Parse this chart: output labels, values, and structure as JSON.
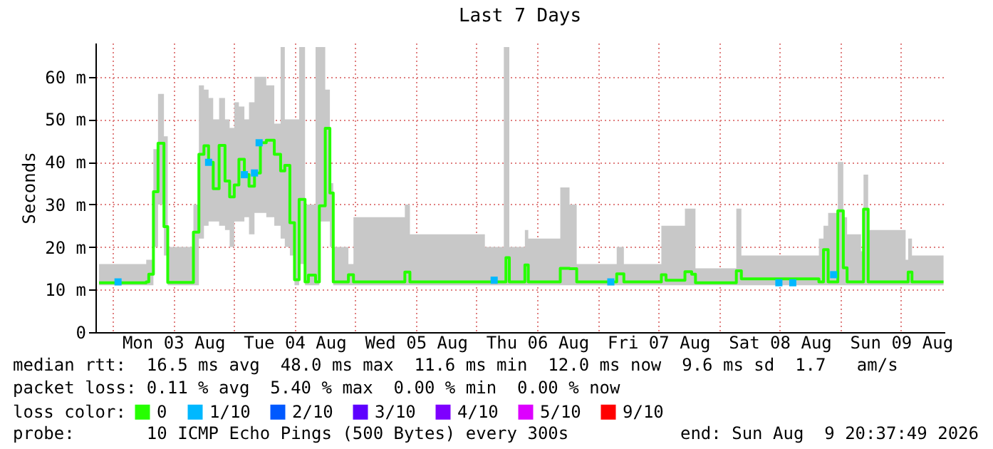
{
  "chart_data": {
    "type": "step",
    "title": "Last 7 Days",
    "ylabel": "Seconds",
    "x": [
      "2026-08-02T21:20",
      "2026-08-03T06:40",
      "2026-08-03T07:10",
      "2026-08-03T08:05",
      "2026-08-03T09:00",
      "2026-08-03T10:10",
      "2026-08-03T10:55",
      "2026-08-03T15:05",
      "2026-08-03T16:00",
      "2026-08-03T17:05",
      "2026-08-03T18:05",
      "2026-08-03T19:00",
      "2026-08-03T19:55",
      "2026-08-03T21:05",
      "2026-08-03T22:15",
      "2026-08-03T23:10",
      "2026-08-04T00:05",
      "2026-08-04T01:00",
      "2026-08-04T02:05",
      "2026-08-04T03:00",
      "2026-08-04T04:05",
      "2026-08-04T05:15",
      "2026-08-04T06:25",
      "2026-08-04T08:00",
      "2026-08-04T09:15",
      "2026-08-04T10:05",
      "2026-08-04T11:05",
      "2026-08-04T12:00",
      "2026-08-04T12:55",
      "2026-08-04T14:05",
      "2026-08-04T14:45",
      "2026-08-04T16:10",
      "2026-08-04T16:55",
      "2026-08-04T18:05",
      "2026-08-04T19:00",
      "2026-08-04T19:40",
      "2026-08-04T22:40",
      "2026-08-04T23:40",
      "2026-08-05T09:50",
      "2026-08-05T10:50",
      "2026-08-06T01:40",
      "2026-08-06T05:25",
      "2026-08-06T05:50",
      "2026-08-06T06:30",
      "2026-08-06T09:35",
      "2026-08-06T10:15",
      "2026-08-06T16:35",
      "2026-08-06T18:25",
      "2026-08-06T19:50",
      "2026-08-07T02:50",
      "2026-08-07T03:45",
      "2026-08-07T05:10",
      "2026-08-07T12:35",
      "2026-08-07T13:30",
      "2026-08-07T17:15",
      "2026-08-07T18:35",
      "2026-08-07T19:20",
      "2026-08-08T03:25",
      "2026-08-08T04:25",
      "2026-08-08T19:45",
      "2026-08-08T20:40",
      "2026-08-08T21:35",
      "2026-08-08T23:30",
      "2026-08-09T00:35",
      "2026-08-09T01:20",
      "2026-08-09T04:05",
      "2026-08-09T04:35",
      "2026-08-09T05:30",
      "2026-08-09T12:55",
      "2026-08-09T13:25",
      "2026-08-09T14:10",
      "2026-08-09T20:25"
    ],
    "series": [
      {
        "name": "0",
        "color": "#26ff00",
        "values": [
          11.6,
          11.8,
          13.6,
          33,
          44.4,
          24.8,
          11.7,
          11.7,
          23.5,
          41.8,
          43.8,
          39.9,
          33.7,
          43.9,
          35.5,
          31.8,
          34.6,
          40.6,
          37,
          34.3,
          37.4,
          44.5,
          45.1,
          41.8,
          37.9,
          39.2,
          25.7,
          12.3,
          31.2,
          11.8,
          13.4,
          11.8,
          29.7,
          47.9,
          32.7,
          11.8,
          13.5,
          11.8,
          14.1,
          11.8,
          11.8,
          11.8,
          17.5,
          11.8,
          15.8,
          11.8,
          15,
          14.9,
          11.8,
          11.8,
          13.7,
          11.8,
          13.5,
          12.2,
          14.2,
          13.6,
          11.6,
          14.4,
          12.5,
          11.8,
          19.4,
          11.8,
          28.5,
          15.1,
          11.8,
          11.8,
          28.9,
          11.8,
          11.8,
          14.1,
          11.8,
          11.8
        ],
        "lower": [
          11,
          11,
          11,
          20,
          30,
          18,
          11,
          11,
          11,
          22,
          25,
          26,
          26,
          25,
          24,
          20,
          26,
          26,
          27,
          23,
          28,
          28,
          27,
          25,
          22,
          20,
          18,
          11,
          16,
          11,
          11,
          11,
          26,
          26,
          20,
          11,
          11,
          11,
          11,
          11,
          11,
          11,
          11,
          11,
          11,
          11,
          11,
          11,
          11,
          11,
          11,
          11,
          11,
          11,
          11,
          11,
          11,
          11,
          11,
          11,
          11,
          11,
          11,
          11,
          11,
          11,
          11,
          11,
          11,
          11,
          11,
          11
        ],
        "upper": [
          16,
          17,
          17,
          43,
          56,
          46,
          20,
          20,
          30,
          58,
          57,
          55,
          50,
          55,
          50,
          48,
          54,
          53,
          50,
          54,
          60,
          60,
          58,
          49,
          67,
          50,
          50,
          50,
          67,
          30,
          30,
          67,
          67,
          57,
          35,
          20,
          16,
          27,
          30,
          23,
          20,
          67,
          67,
          20,
          24,
          22,
          34,
          30,
          16,
          16,
          20,
          16,
          25,
          25,
          29,
          29,
          15,
          29,
          18,
          22,
          25,
          28,
          40,
          27,
          23,
          19,
          37,
          24,
          17,
          22,
          18,
          16
        ]
      },
      {
        "name": "1/10",
        "type": "scatter",
        "marker": "square",
        "color": "#00b8ff",
        "x": [
          "2026-08-03T01:05",
          "2026-08-03T19:00",
          "2026-08-04T02:05",
          "2026-08-04T04:05",
          "2026-08-04T05:00",
          "2026-08-06T03:30",
          "2026-08-07T02:35",
          "2026-08-08T11:50",
          "2026-08-08T14:35",
          "2026-08-08T22:40"
        ],
        "values": [
          11.8,
          39.9,
          37,
          37.4,
          44.5,
          12.2,
          11.8,
          11.6,
          11.6,
          13.5
        ]
      },
      {
        "name": "2/10",
        "type": "scatter",
        "color": "#0059ff",
        "values": [
          null,
          null,
          null,
          null,
          null,
          null,
          null,
          null,
          null,
          null,
          null,
          null,
          null,
          null,
          null,
          null,
          null,
          null,
          null,
          null,
          null,
          null,
          null,
          null,
          null,
          null,
          null,
          null,
          null,
          null,
          null,
          null,
          null,
          null,
          null,
          null,
          null,
          null,
          null,
          null,
          null,
          null,
          null,
          null,
          null,
          null,
          null,
          null,
          null,
          null,
          null,
          null,
          null,
          null,
          null,
          null,
          null,
          null,
          null,
          null,
          null,
          null,
          null,
          null,
          null,
          null,
          null,
          null,
          null,
          null,
          null,
          null
        ]
      },
      {
        "name": "3/10",
        "type": "scatter",
        "color": "#5e00ff",
        "values": [
          null,
          null,
          null,
          null,
          null,
          null,
          null,
          null,
          null,
          null,
          null,
          null,
          null,
          null,
          null,
          null,
          null,
          null,
          null,
          null,
          null,
          null,
          null,
          null,
          null,
          null,
          null,
          null,
          null,
          null,
          null,
          null,
          null,
          null,
          null,
          null,
          null,
          null,
          null,
          null,
          null,
          null,
          null,
          null,
          null,
          null,
          null,
          null,
          null,
          null,
          null,
          null,
          null,
          null,
          null,
          null,
          null,
          null,
          null,
          null,
          null,
          null,
          null,
          null,
          null,
          null,
          null,
          null,
          null,
          null,
          null,
          null
        ]
      },
      {
        "name": "4/10",
        "type": "scatter",
        "color": "#7e00ff",
        "values": [
          null,
          null,
          null,
          null,
          null,
          null,
          null,
          null,
          null,
          null,
          null,
          null,
          null,
          null,
          null,
          null,
          null,
          null,
          null,
          null,
          null,
          null,
          null,
          null,
          null,
          null,
          null,
          null,
          null,
          null,
          null,
          null,
          null,
          null,
          null,
          null,
          null,
          null,
          null,
          null,
          null,
          null,
          null,
          null,
          null,
          null,
          null,
          null,
          null,
          null,
          null,
          null,
          null,
          null,
          null,
          null,
          null,
          null,
          null,
          null,
          null,
          null,
          null,
          null,
          null,
          null,
          null,
          null,
          null,
          null,
          null,
          null
        ]
      },
      {
        "name": "5/10",
        "type": "scatter",
        "color": "#dd00ff",
        "values": [
          null,
          null,
          null,
          null,
          null,
          null,
          null,
          null,
          null,
          null,
          null,
          null,
          null,
          null,
          null,
          null,
          null,
          null,
          null,
          null,
          null,
          null,
          null,
          null,
          null,
          null,
          null,
          null,
          null,
          null,
          null,
          null,
          null,
          null,
          null,
          null,
          null,
          null,
          null,
          null,
          null,
          null,
          null,
          null,
          null,
          null,
          null,
          null,
          null,
          null,
          null,
          null,
          null,
          null,
          null,
          null,
          null,
          null,
          null,
          null,
          null,
          null,
          null,
          null,
          null,
          null,
          null,
          null,
          null,
          null,
          null,
          null
        ]
      },
      {
        "name": "9/10",
        "type": "scatter",
        "color": "#ff0000",
        "values": [
          null,
          null,
          null,
          null,
          null,
          null,
          null,
          null,
          null,
          null,
          null,
          null,
          null,
          null,
          null,
          null,
          null,
          null,
          null,
          null,
          null,
          null,
          null,
          null,
          null,
          null,
          null,
          null,
          null,
          null,
          null,
          null,
          null,
          null,
          null,
          null,
          null,
          null,
          null,
          null,
          null,
          null,
          null,
          null,
          null,
          null,
          null,
          null,
          null,
          null,
          null,
          null,
          null,
          null,
          null,
          null,
          null,
          null,
          null,
          null,
          null,
          null,
          null,
          null,
          null,
          null,
          null,
          null,
          null,
          null,
          null,
          null
        ]
      }
    ],
    "xlim": [
      "2026-08-02T20:37",
      "2026-08-09T20:37"
    ],
    "xticks": [
      {
        "value": "2026-08-03T00:00",
        "label": null
      },
      {
        "value": "2026-08-03T12:00",
        "label": "Mon 03 Aug"
      },
      {
        "value": "2026-08-04T00:00",
        "label": null
      },
      {
        "value": "2026-08-04T12:00",
        "label": "Tue 04 Aug"
      },
      {
        "value": "2026-08-05T00:00",
        "label": null
      },
      {
        "value": "2026-08-05T12:00",
        "label": "Wed 05 Aug"
      },
      {
        "value": "2026-08-06T00:00",
        "label": null
      },
      {
        "value": "2026-08-06T12:00",
        "label": "Thu 06 Aug"
      },
      {
        "value": "2026-08-07T00:00",
        "label": null
      },
      {
        "value": "2026-08-07T12:00",
        "label": "Fri 07 Aug"
      },
      {
        "value": "2026-08-08T00:00",
        "label": null
      },
      {
        "value": "2026-08-08T12:00",
        "label": "Sat 08 Aug"
      },
      {
        "value": "2026-08-09T00:00",
        "label": null
      },
      {
        "value": "2026-08-09T12:00",
        "label": "Sun 09 Aug"
      }
    ],
    "ylim": [
      0,
      68
    ],
    "yticks": [
      0,
      {
        "value": 10,
        "label": "10 m"
      },
      {
        "value": 20,
        "label": "20 m"
      },
      {
        "value": 30,
        "label": "30 m"
      },
      {
        "value": 40,
        "label": "40 m"
      },
      {
        "value": 50,
        "label": "50 m"
      },
      {
        "value": 60,
        "label": "60 m"
      }
    ],
    "grid": true,
    "legend": "bottom",
    "legend_title": "loss color:",
    "annotations": [
      "median rtt:  16.5 ms avg  48.0 ms max  11.6 ms min  12.0 ms now  9.6 ms sd  1.7   am/s",
      "packet loss: 0.11 % avg  5.40 % max  0.00 % min  0.00 % now",
      "probe:       10 ICMP Echo Pings (500 Bytes) every 300s",
      "end: Sun Aug  9 20:37:49 2026"
    ]
  }
}
